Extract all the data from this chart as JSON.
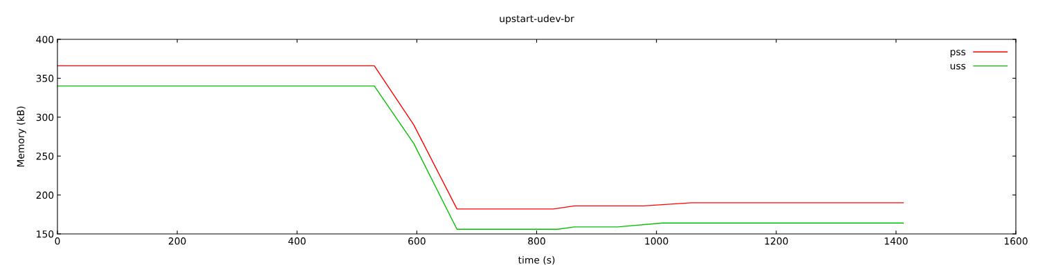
{
  "chart_data": {
    "type": "line",
    "title": "upstart-udev-br",
    "xlabel": "time (s)",
    "ylabel": "Memory (kB)",
    "xlim": [
      0,
      1600
    ],
    "ylim": [
      150,
      400
    ],
    "xticks": [
      0,
      200,
      400,
      600,
      800,
      1000,
      1200,
      1400,
      1600
    ],
    "yticks": [
      150,
      200,
      250,
      300,
      350,
      400
    ],
    "legend": "top right",
    "grid": false,
    "series": [
      {
        "name": "pss",
        "color": "#ff0000",
        "x": [
          0,
          529,
          595,
          667,
          828,
          863,
          978,
          1059,
          1412
        ],
        "values": [
          366,
          366,
          290,
          182,
          182,
          186,
          186,
          190,
          190
        ]
      },
      {
        "name": "uss",
        "color": "#00c000",
        "x": [
          0,
          529,
          595,
          667,
          835,
          863,
          935,
          1010,
          1412
        ],
        "values": [
          340,
          340,
          266,
          156,
          156,
          159,
          159,
          164,
          164
        ]
      }
    ]
  }
}
